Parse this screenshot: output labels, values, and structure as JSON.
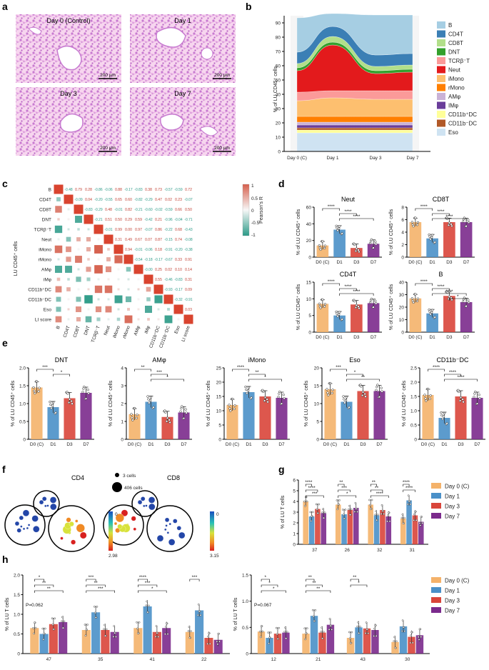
{
  "panels": {
    "a": "a",
    "b": "b",
    "c": "c",
    "d": "d",
    "e": "e",
    "f": "f",
    "g": "g",
    "h": "h"
  },
  "panel_a": {
    "titles": [
      "Day 0 (Control)",
      "Day 1",
      "Day 3",
      "Day 7"
    ],
    "scale_bar": "200 μm"
  },
  "panel_b": {
    "y_label": "% of LU CD45⁺ cells",
    "y_ticks": [
      "0",
      "10",
      "20",
      "30",
      "40",
      "50",
      "60",
      "70",
      "80",
      "90"
    ],
    "x_ticks": [
      "Day 0 (C)",
      "Day 1",
      "Day 3",
      "Day 7"
    ],
    "legend": [
      {
        "label": "B",
        "color": "#a6cee3"
      },
      {
        "label": "CD4T",
        "color": "#3b7fb5"
      },
      {
        "label": "CD8T",
        "color": "#b2df8a"
      },
      {
        "label": "DNT",
        "color": "#33a02c"
      },
      {
        "label": "TCRβ⁻T",
        "color": "#fb9a99"
      },
      {
        "label": "Neut",
        "color": "#e31a1c"
      },
      {
        "label": "iMono",
        "color": "#fdbf6f"
      },
      {
        "label": "rMono",
        "color": "#ff7f00"
      },
      {
        "label": "AMφ",
        "color": "#cab2d6"
      },
      {
        "label": "IMφ",
        "color": "#6a3d9a"
      },
      {
        "label": "CD11b⁺DC",
        "color": "#ffff99"
      },
      {
        "label": "CD11b⁻DC",
        "color": "#b15928"
      },
      {
        "label": "Eso",
        "color": "#cfe3f2"
      }
    ]
  },
  "panel_c": {
    "y_label": "LU CD45⁺ cells",
    "labels": [
      "B",
      "CD4T",
      "CD8T",
      "DNT",
      "TCRβ⁻T",
      "Neut",
      "iMono",
      "rMono",
      "AMφ",
      "iMφ",
      "CD11b⁺DC",
      "CD11b⁻DC",
      "Eso",
      "LI score"
    ],
    "colorbar_title": "Pearson's R",
    "colorbar_ticks": [
      "1",
      "0.5",
      "0",
      "-0.5",
      "-1"
    ]
  },
  "panel_d": {
    "y_label": "% of LU CD45⁺ cells",
    "x_ticks": [
      "D0 (C)",
      "D1",
      "D3",
      "D7"
    ],
    "charts": [
      {
        "title": "Neut",
        "ylim": [
          0,
          60
        ],
        "ticks": [
          "0",
          "20",
          "40",
          "60"
        ],
        "values": [
          14,
          33,
          11,
          16
        ],
        "sig": [
          "****",
          "****",
          "****"
        ]
      },
      {
        "title": "CD8T",
        "ylim": [
          0,
          8
        ],
        "ticks": [
          "0",
          "2",
          "4",
          "6",
          "8"
        ],
        "values": [
          5.6,
          3.0,
          5.6,
          5.6
        ],
        "sig": [
          "****",
          "****",
          "****"
        ]
      },
      {
        "title": "CD4T",
        "ylim": [
          0,
          15
        ],
        "ticks": [
          "0",
          "5",
          "10",
          "15"
        ],
        "values": [
          8.5,
          5.0,
          8.3,
          8.7
        ],
        "sig": [
          "****",
          "****",
          "****"
        ]
      },
      {
        "title": "B",
        "ylim": [
          0,
          40
        ],
        "ticks": [
          "0",
          "10",
          "20",
          "30",
          "40"
        ],
        "values": [
          27,
          15,
          29,
          24
        ],
        "sig": [
          "****",
          "****",
          "****",
          "*"
        ]
      }
    ]
  },
  "panel_e": {
    "y_label": "% of LU CD45⁺ cells",
    "x_ticks": [
      "D0 (C)",
      "D1",
      "D3",
      "D7"
    ],
    "charts": [
      {
        "title": "DNT",
        "ylim": [
          0,
          2
        ],
        "ticks": [
          "0",
          "0.5",
          "1.0",
          "1.5",
          "2.0"
        ],
        "values": [
          1.45,
          0.9,
          1.15,
          1.3
        ],
        "sig": [
          "***",
          "*"
        ]
      },
      {
        "title": "AMφ",
        "ylim": [
          0,
          4
        ],
        "ticks": [
          "0",
          "1",
          "2",
          "3",
          "4"
        ],
        "values": [
          1.4,
          2.1,
          1.25,
          1.5
        ],
        "sig": [
          "**",
          "***",
          "*"
        ]
      },
      {
        "title": "iMono",
        "ylim": [
          0,
          25
        ],
        "ticks": [
          "0",
          "5",
          "10",
          "15",
          "20",
          "25"
        ],
        "values": [
          12,
          16.5,
          15,
          14.5
        ],
        "sig": [
          "****",
          "**",
          "*"
        ]
      },
      {
        "title": "Eso",
        "ylim": [
          0,
          20
        ],
        "ticks": [
          "0",
          "5",
          "10",
          "15",
          "20"
        ],
        "values": [
          14,
          10.5,
          13.5,
          13.5
        ],
        "sig": [
          "***",
          "*",
          "**"
        ]
      },
      {
        "title": "CD11b⁻DC",
        "ylim": [
          0,
          2.5
        ],
        "ticks": [
          "0",
          "0.5",
          "1.0",
          "1.5",
          "2.0",
          "2.5"
        ],
        "values": [
          1.55,
          0.75,
          1.5,
          1.45
        ],
        "sig": [
          "****",
          "****",
          "****"
        ]
      }
    ]
  },
  "panel_f": {
    "titles": [
      "CD4",
      "CD8"
    ],
    "size_legend": [
      "3 cells",
      "406 cells"
    ],
    "cd4_scale": [
      "0",
      "2.98"
    ],
    "cd8_scale": [
      "0",
      "3.15"
    ]
  },
  "panel_g": {
    "y_label": "% of LU T cells",
    "y_ticks": [
      "0",
      "1",
      "2",
      "3",
      "4",
      "5",
      "6"
    ],
    "clusters": [
      "37",
      "26",
      "32",
      "31"
    ],
    "series": [
      {
        "name": "Day 0 (C)",
        "values": [
          4.0,
          3.7,
          3.7,
          2.4
        ]
      },
      {
        "name": "Day 1",
        "values": [
          2.6,
          2.8,
          2.7,
          4.1
        ]
      },
      {
        "name": "Day 3",
        "values": [
          3.3,
          3.2,
          3.2,
          2.7
        ]
      },
      {
        "name": "Day 7",
        "values": [
          2.9,
          3.4,
          2.6,
          2.1
        ]
      }
    ],
    "sig": [
      "****",
      "****",
      "***",
      "**",
      "***",
      "*",
      "**",
      "**",
      "****",
      "****",
      "****"
    ]
  },
  "panel_h": {
    "y_label": "% of LU T cells",
    "left": {
      "y_ticks": [
        "0",
        "0.5",
        "1.0",
        "1.5",
        "2.0"
      ],
      "clusters": [
        "47",
        "35",
        "41",
        "22"
      ],
      "series": [
        {
          "name": "Day 0 (C)",
          "values": [
            0.65,
            0.6,
            0.65,
            0.55
          ]
        },
        {
          "name": "Day 1",
          "values": [
            0.5,
            1.05,
            1.2,
            1.1
          ]
        },
        {
          "name": "Day 3",
          "values": [
            0.75,
            0.6,
            0.55,
            0.4
          ]
        },
        {
          "name": "Day 7",
          "values": [
            0.8,
            0.55,
            0.65,
            0.35
          ]
        }
      ],
      "annot": "P=0.062",
      "sig": [
        "*",
        "**",
        "**",
        "***",
        "**",
        "***",
        "****",
        "***",
        "*",
        "***"
      ]
    },
    "right": {
      "y_ticks": [
        "0",
        "0.5",
        "1.0",
        "1.5"
      ],
      "clusters": [
        "12",
        "21",
        "43",
        "30"
      ],
      "series": [
        {
          "name": "Day 0 (C)",
          "values": [
            0.42,
            0.38,
            0.3,
            0.22
          ]
        },
        {
          "name": "Day 1",
          "values": [
            0.3,
            0.72,
            0.5,
            0.52
          ]
        },
        {
          "name": "Day 3",
          "values": [
            0.38,
            0.4,
            0.48,
            0.32
          ]
        },
        {
          "name": "Day 7",
          "values": [
            0.4,
            0.55,
            0.45,
            0.35
          ]
        }
      ],
      "annot": "P=0.067",
      "sig": [
        "*",
        "*",
        "*",
        "**",
        "**",
        "**",
        "**",
        "*"
      ]
    }
  },
  "group_legend": [
    "Day 0 (C)",
    "Day 1",
    "Day 3",
    "Day 7"
  ],
  "group_colors": [
    "#f4b26a",
    "#4a90c8",
    "#d9453a",
    "#7b2a8c"
  ]
}
